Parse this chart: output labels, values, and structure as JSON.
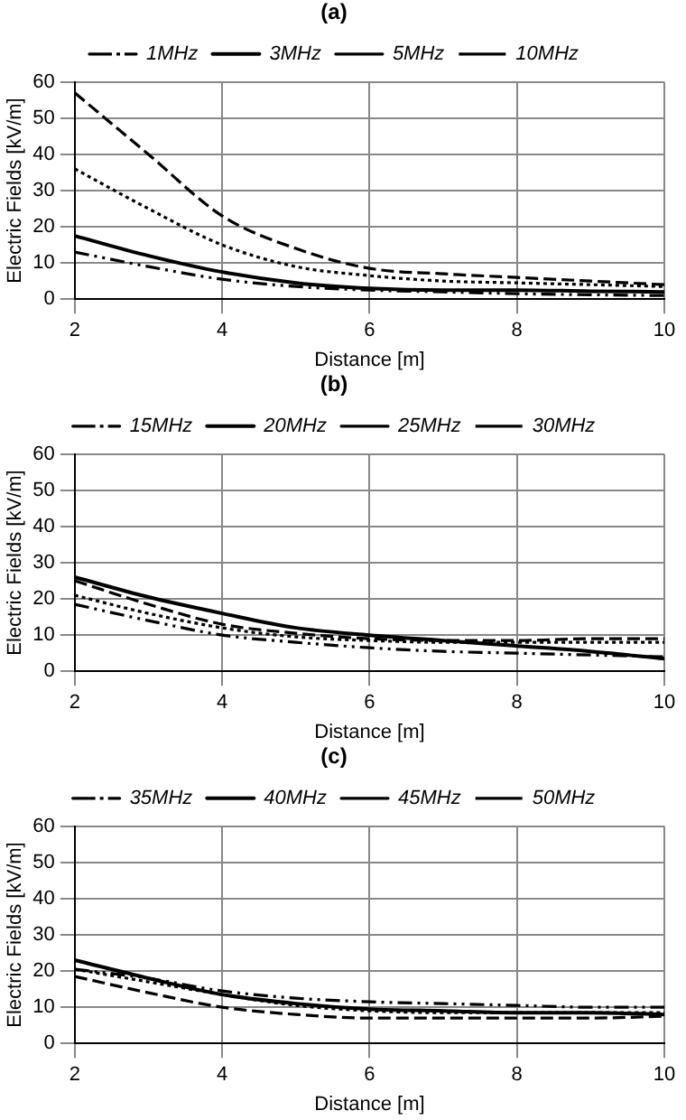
{
  "chart_data": [
    {
      "type": "line",
      "title": "(a)",
      "xlabel": "Distance [m]",
      "ylabel": "Electric Fields [kV/m]",
      "x": [
        2,
        3,
        4,
        5,
        6,
        7,
        8,
        9,
        10
      ],
      "xlim": [
        2,
        10
      ],
      "xticks": [
        2,
        4,
        6,
        8,
        10
      ],
      "ylim": [
        0,
        60
      ],
      "yticks": [
        0,
        10,
        20,
        30,
        40,
        50,
        60
      ],
      "grid": true,
      "legend": "top",
      "marker": "none",
      "series": [
        {
          "name": "1MHz",
          "color": "#000000",
          "line_style": "dashdot",
          "values": [
            13,
            9,
            5.5,
            3.5,
            2.5,
            2,
            1.5,
            1.2,
            1
          ]
        },
        {
          "name": "3MHz",
          "color": "#000000",
          "line_style": "solid",
          "values": [
            17.5,
            12,
            7.5,
            4.5,
            3,
            2.5,
            2.5,
            2.2,
            2
          ]
        },
        {
          "name": "5MHz",
          "color": "#000000",
          "line_style": "dashed",
          "values": [
            57,
            40,
            23,
            14,
            8.5,
            7,
            6,
            5,
            4
          ]
        },
        {
          "name": "10MHz",
          "color": "#000000",
          "line_style": "dotted",
          "values": [
            36,
            25,
            15,
            9,
            6.5,
            5,
            4.5,
            4,
            3.5
          ]
        }
      ]
    },
    {
      "type": "line",
      "title": "(b)",
      "xlabel": "Distance [m]",
      "ylabel": "Electric Fields [kV/m]",
      "x": [
        2,
        3,
        4,
        5,
        6,
        7,
        8,
        9,
        10
      ],
      "xlim": [
        2,
        10
      ],
      "xticks": [
        2,
        4,
        6,
        8,
        10
      ],
      "ylim": [
        0,
        60
      ],
      "yticks": [
        0,
        10,
        20,
        30,
        40,
        50,
        60
      ],
      "grid": true,
      "legend": "top",
      "marker": "none",
      "series": [
        {
          "name": "15MHz",
          "color": "#000000",
          "line_style": "dashdot",
          "values": [
            18.5,
            14,
            10,
            8,
            6.5,
            5.5,
            5,
            4.5,
            4
          ]
        },
        {
          "name": "20MHz",
          "color": "#000000",
          "line_style": "solid",
          "values": [
            26,
            20.5,
            16,
            12,
            10,
            8.5,
            7,
            5.5,
            3.5
          ]
        },
        {
          "name": "25MHz",
          "color": "#000000",
          "line_style": "dashed",
          "values": [
            25,
            18.5,
            13,
            10.5,
            9,
            8.5,
            8.5,
            9,
            9
          ]
        },
        {
          "name": "30MHz",
          "color": "#000000",
          "line_style": "dotted",
          "values": [
            21,
            16,
            12,
            9.5,
            8.5,
            8,
            8,
            8,
            8
          ]
        }
      ]
    },
    {
      "type": "line",
      "title": "(c)",
      "xlabel": "Distance [m]",
      "ylabel": "Electric Fields [kV/m]",
      "x": [
        2,
        3,
        4,
        5,
        6,
        7,
        8,
        9,
        10
      ],
      "xlim": [
        2,
        10
      ],
      "xticks": [
        2,
        4,
        6,
        8,
        10
      ],
      "ylim": [
        0,
        60
      ],
      "yticks": [
        0,
        10,
        20,
        30,
        40,
        50,
        60
      ],
      "grid": true,
      "legend": "top",
      "marker": "none",
      "series": [
        {
          "name": "35MHz",
          "color": "#000000",
          "line_style": "dashdot",
          "values": [
            20.5,
            18,
            14.5,
            12.5,
            11.5,
            11,
            10.5,
            10,
            10
          ]
        },
        {
          "name": "40MHz",
          "color": "#000000",
          "line_style": "solid",
          "values": [
            23,
            18,
            13.5,
            11,
            9.5,
            9,
            8.5,
            8.5,
            8
          ]
        },
        {
          "name": "45MHz",
          "color": "#000000",
          "line_style": "dashed",
          "values": [
            18.5,
            14,
            10,
            8,
            7,
            7,
            7,
            7,
            7.5
          ]
        },
        {
          "name": "50MHz",
          "color": "#000000",
          "line_style": "dotted",
          "values": [
            20.5,
            17,
            13.5,
            10.5,
            9,
            8.5,
            8.5,
            8.5,
            8.5
          ]
        }
      ]
    }
  ]
}
